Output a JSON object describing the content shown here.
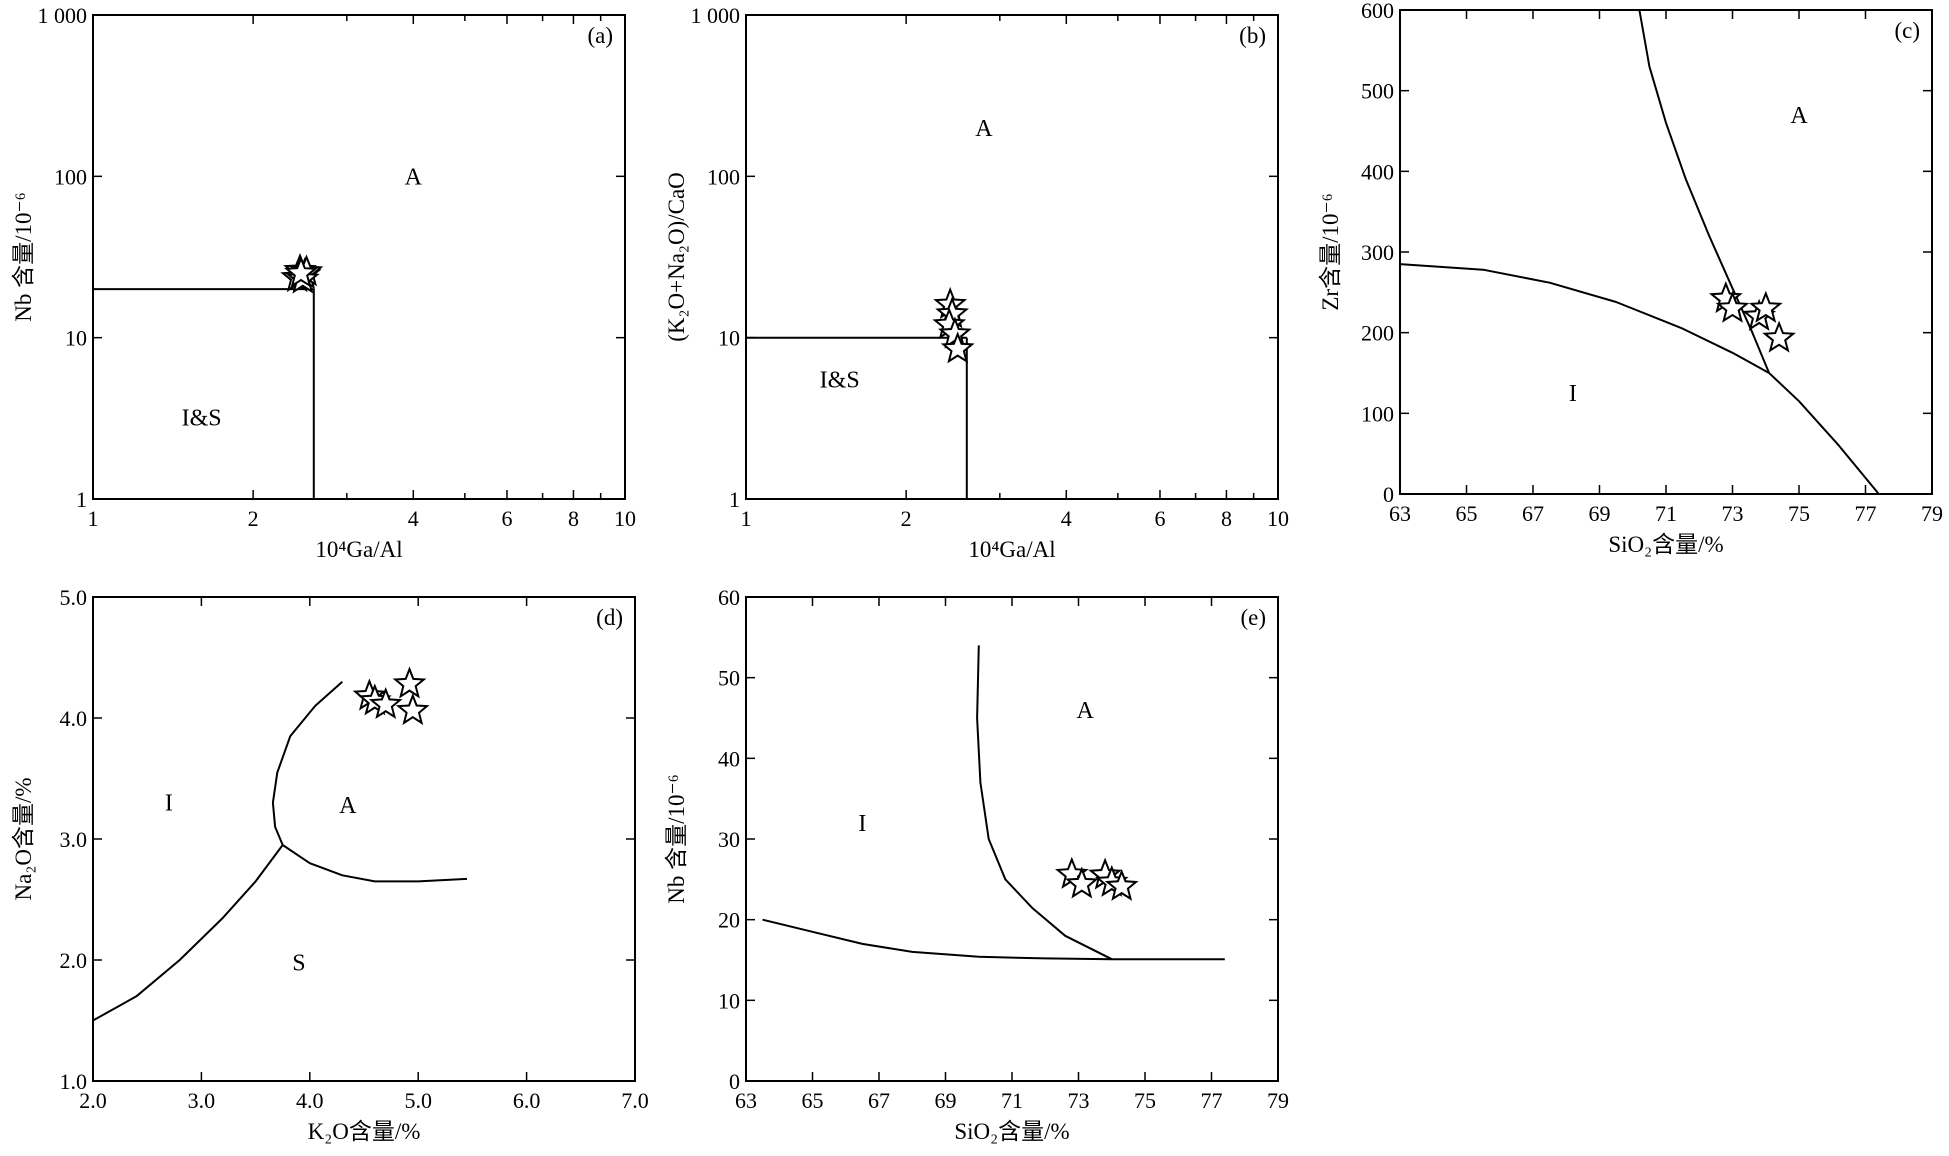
{
  "figure": {
    "panels_count": 5
  },
  "chart_data": [
    {
      "id": "a",
      "panel_label": "(a)",
      "type": "scatter",
      "xscale": "log",
      "yscale": "log",
      "xlim": [
        1,
        10
      ],
      "ylim": [
        1,
        1000
      ],
      "xticks": [
        1,
        2,
        4,
        6,
        8,
        10
      ],
      "xtick_labels": [
        "1",
        "2",
        "4",
        "6",
        "8",
        "10"
      ],
      "yticks": [
        1,
        10,
        100,
        1000
      ],
      "ytick_labels": [
        "1",
        "10",
        "100",
        "1 000"
      ],
      "xlabel": "10⁴Ga/Al",
      "ylabel": "Nb 含量/10⁻⁶",
      "boundaries": [
        {
          "x": [
            1,
            2.6
          ],
          "y": [
            20,
            20
          ]
        },
        {
          "x": [
            2.6,
            2.6
          ],
          "y": [
            20,
            1
          ]
        }
      ],
      "field_labels": [
        {
          "text": "A",
          "x": 4.0,
          "y": 100
        },
        {
          "text": "I&S",
          "x": 1.6,
          "y": 3.2
        }
      ],
      "points": [
        {
          "x": 2.45,
          "y": 26
        },
        {
          "x": 2.5,
          "y": 24.5
        },
        {
          "x": 2.42,
          "y": 23.5
        },
        {
          "x": 2.52,
          "y": 25.5
        },
        {
          "x": 2.48,
          "y": 23
        },
        {
          "x": 2.46,
          "y": 25
        }
      ],
      "marker": "star"
    },
    {
      "id": "b",
      "panel_label": "(b)",
      "type": "scatter",
      "xscale": "log",
      "yscale": "log",
      "xlim": [
        1,
        10
      ],
      "ylim": [
        1,
        1000
      ],
      "xticks": [
        1,
        2,
        4,
        6,
        8,
        10
      ],
      "xtick_labels": [
        "1",
        "2",
        "4",
        "6",
        "8",
        "10"
      ],
      "yticks": [
        1,
        10,
        100,
        1000
      ],
      "ytick_labels": [
        "1",
        "10",
        "100",
        "1 000"
      ],
      "xlabel": "10⁴Ga/Al",
      "ylabel": "(K₂O+Na₂O)/CaO",
      "boundaries": [
        {
          "x": [
            1,
            2.6
          ],
          "y": [
            10,
            10
          ]
        },
        {
          "x": [
            2.6,
            2.6
          ],
          "y": [
            10,
            1
          ]
        }
      ],
      "field_labels": [
        {
          "text": "A",
          "x": 2.8,
          "y": 200
        },
        {
          "text": "I&S",
          "x": 1.5,
          "y": 5.5
        }
      ],
      "points": [
        {
          "x": 2.42,
          "y": 16
        },
        {
          "x": 2.44,
          "y": 14
        },
        {
          "x": 2.41,
          "y": 12
        },
        {
          "x": 2.47,
          "y": 10.5
        },
        {
          "x": 2.5,
          "y": 8.5
        }
      ],
      "marker": "star"
    },
    {
      "id": "c",
      "panel_label": "(c)",
      "type": "scatter",
      "xscale": "linear",
      "yscale": "linear",
      "xlim": [
        63,
        79
      ],
      "ylim": [
        0,
        600
      ],
      "xticks": [
        63,
        65,
        67,
        69,
        71,
        73,
        75,
        77,
        79
      ],
      "xtick_labels": [
        "63",
        "65",
        "67",
        "69",
        "71",
        "73",
        "75",
        "77",
        "79"
      ],
      "yticks": [
        0,
        100,
        200,
        300,
        400,
        500,
        600
      ],
      "ytick_labels": [
        "0",
        "100",
        "200",
        "300",
        "400",
        "500",
        "600"
      ],
      "xlabel": "SiO₂含量/%",
      "ylabel": "Zr含量/10⁻⁶",
      "boundaries": [
        {
          "x": [
            70.2,
            70.5,
            71.0,
            71.6,
            72.3,
            73.0,
            73.6,
            74.1,
            75.0,
            76.2,
            77.4
          ],
          "y": [
            600,
            530,
            460,
            390,
            320,
            255,
            200,
            150,
            115,
            60,
            0
          ]
        },
        {
          "x": [
            63.0,
            65.5,
            67.5,
            69.5,
            71.5,
            73.0,
            74.1
          ],
          "y": [
            285,
            278,
            262,
            238,
            205,
            175,
            150
          ]
        }
      ],
      "field_labels": [
        {
          "text": "A",
          "x": 75.0,
          "y": 470
        },
        {
          "text": "I",
          "x": 68.2,
          "y": 125
        }
      ],
      "points": [
        {
          "x": 72.8,
          "y": 242
        },
        {
          "x": 73.0,
          "y": 230
        },
        {
          "x": 73.8,
          "y": 220
        },
        {
          "x": 74.0,
          "y": 230
        },
        {
          "x": 74.4,
          "y": 193
        }
      ],
      "marker": "star"
    },
    {
      "id": "d",
      "panel_label": "(d)",
      "type": "scatter",
      "xscale": "linear",
      "yscale": "linear",
      "xlim": [
        2.0,
        7.0
      ],
      "ylim": [
        1.0,
        5.0
      ],
      "xticks": [
        2,
        3,
        4,
        5,
        6,
        7
      ],
      "xtick_labels": [
        "2.0",
        "3.0",
        "4.0",
        "5.0",
        "6.0",
        "7.0"
      ],
      "yticks": [
        1,
        2,
        3,
        4,
        5
      ],
      "ytick_labels": [
        "1.0",
        "2.0",
        "3.0",
        "4.0",
        "5.0"
      ],
      "xlabel": "K₂O含量/%",
      "ylabel": "Na₂O含量/%",
      "boundaries": [
        {
          "x": [
            2.0,
            2.4,
            2.8,
            3.2,
            3.5,
            3.75
          ],
          "y": [
            1.5,
            1.7,
            2.0,
            2.35,
            2.65,
            2.95
          ]
        },
        {
          "x": [
            4.3,
            4.05,
            3.82,
            3.7,
            3.66,
            3.68,
            3.75
          ],
          "y": [
            4.3,
            4.1,
            3.85,
            3.55,
            3.3,
            3.1,
            2.95
          ]
        },
        {
          "x": [
            3.75,
            4.0,
            4.3,
            4.6,
            5.0,
            5.45
          ],
          "y": [
            2.95,
            2.8,
            2.7,
            2.65,
            2.65,
            2.67
          ]
        }
      ],
      "field_labels": [
        {
          "text": "I",
          "x": 2.7,
          "y": 3.3
        },
        {
          "text": "A",
          "x": 4.35,
          "y": 3.28
        },
        {
          "text": "S",
          "x": 3.9,
          "y": 1.98
        }
      ],
      "points": [
        {
          "x": 4.55,
          "y": 4.18
        },
        {
          "x": 4.6,
          "y": 4.14
        },
        {
          "x": 4.7,
          "y": 4.11
        },
        {
          "x": 4.92,
          "y": 4.28
        },
        {
          "x": 4.95,
          "y": 4.06
        }
      ],
      "marker": "star"
    },
    {
      "id": "e",
      "panel_label": "(e)",
      "type": "scatter",
      "xscale": "linear",
      "yscale": "linear",
      "xlim": [
        63,
        79
      ],
      "ylim": [
        0,
        60
      ],
      "xticks": [
        63,
        65,
        67,
        69,
        71,
        73,
        75,
        77,
        79
      ],
      "xtick_labels": [
        "63",
        "65",
        "67",
        "69",
        "71",
        "73",
        "75",
        "77",
        "79"
      ],
      "yticks": [
        0,
        10,
        20,
        30,
        40,
        50,
        60
      ],
      "ytick_labels": [
        "0",
        "10",
        "20",
        "30",
        "40",
        "50",
        "60"
      ],
      "xlabel": "SiO₂含量/%",
      "ylabel": "Nb 含量/10⁻⁶",
      "boundaries": [
        {
          "x": [
            63.5,
            65.0,
            66.5,
            68.0,
            70.0,
            72.0,
            74.0,
            77.4
          ],
          "y": [
            20.0,
            18.5,
            17.0,
            16.0,
            15.4,
            15.2,
            15.1,
            15.1
          ]
        },
        {
          "x": [
            70.0,
            69.95,
            70.05,
            70.3,
            70.8,
            71.6,
            72.6,
            74.0
          ],
          "y": [
            54.0,
            45.0,
            37.0,
            30.0,
            25.0,
            21.5,
            18.0,
            15.1
          ]
        }
      ],
      "field_labels": [
        {
          "text": "A",
          "x": 73.2,
          "y": 46
        },
        {
          "text": "I",
          "x": 66.5,
          "y": 32
        }
      ],
      "points": [
        {
          "x": 72.8,
          "y": 25.6
        },
        {
          "x": 73.1,
          "y": 24.4
        },
        {
          "x": 73.8,
          "y": 25.5
        },
        {
          "x": 74.0,
          "y": 24.6
        },
        {
          "x": 74.3,
          "y": 24.1
        }
      ],
      "marker": "star"
    }
  ]
}
